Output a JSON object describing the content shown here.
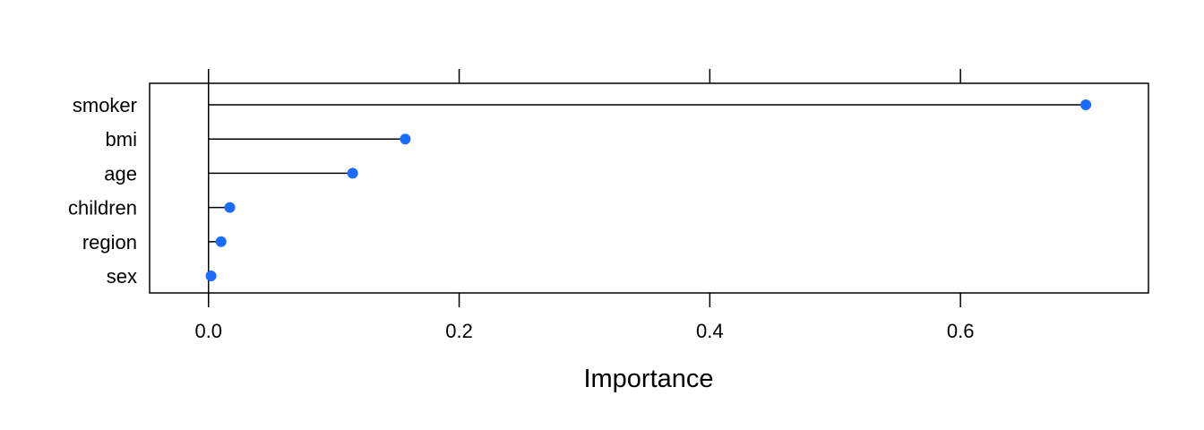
{
  "chart_data": {
    "type": "lollipop",
    "title": "",
    "xlabel": "Importance",
    "ylabel": "",
    "xlim": [
      -0.047,
      0.75
    ],
    "x_ticks": [
      0.0,
      0.2,
      0.4,
      0.6
    ],
    "x_tick_labels": [
      "0.0",
      "0.2",
      "0.4",
      "0.6"
    ],
    "grid": false,
    "legend": "none",
    "categories": [
      "smoker",
      "bmi",
      "age",
      "children",
      "region",
      "sex"
    ],
    "values": [
      0.7,
      0.157,
      0.115,
      0.017,
      0.01,
      0.002
    ],
    "colors": {
      "point": "#1a6bff",
      "stem": "#000000",
      "frame": "#000000"
    }
  }
}
